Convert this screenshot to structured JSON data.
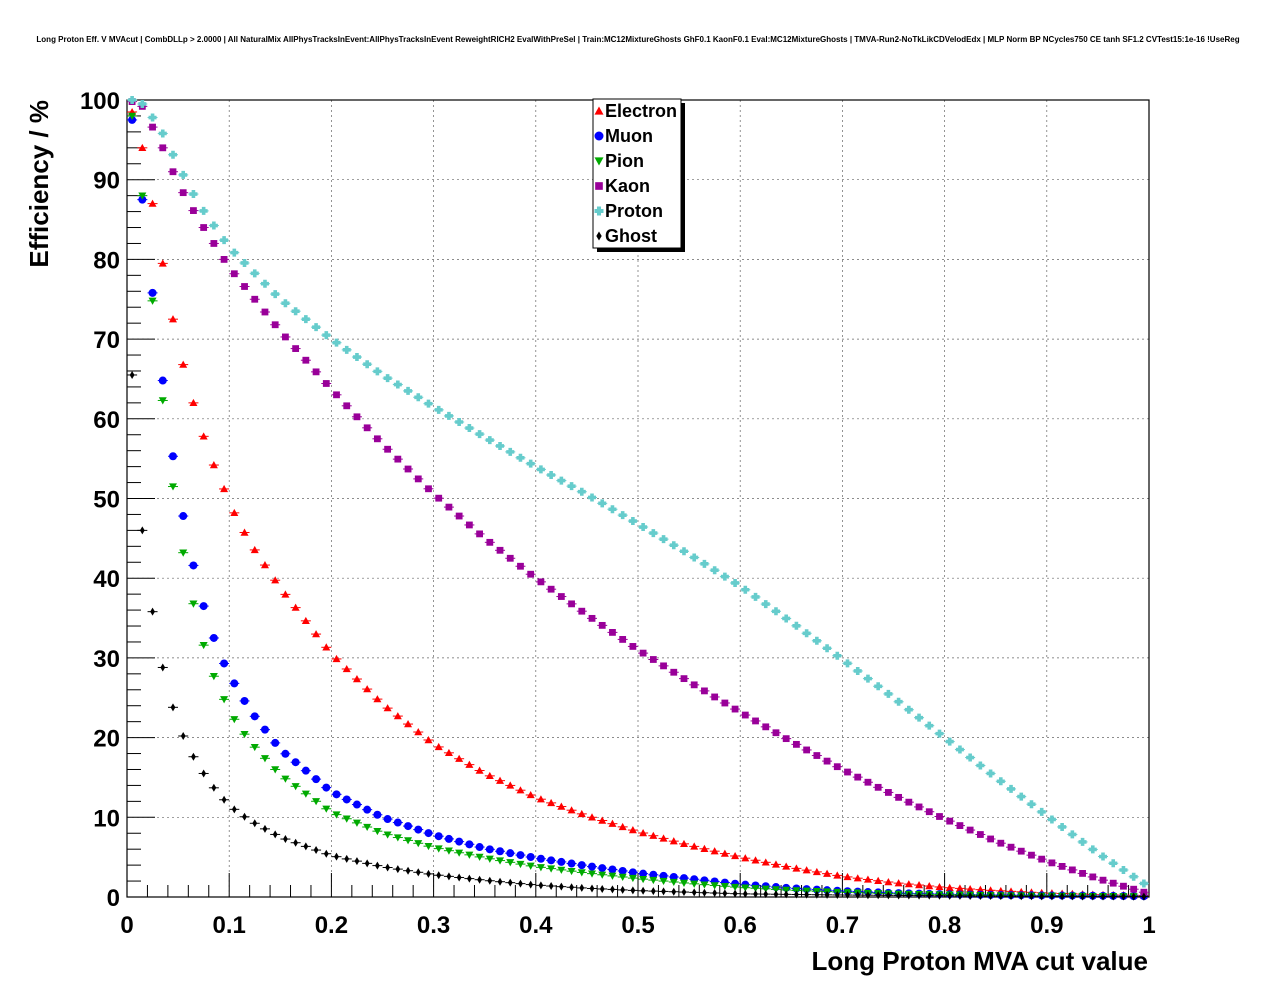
{
  "chart_data": {
    "type": "scatter",
    "title": "Long Proton Eff. V MVAcut | CombDLLp > 2.0000 | All NaturalMix AllPhysTracksInEvent:AllPhysTracksInEvent ReweightRICH2 EvalWithPreSel | Train:MC12MixtureGhosts GhF0.1 KaonF0.1 Eval:MC12MixtureGhosts | TMVA-Run2-NoTkLikCDVelodEdx | MLP Norm BP NCycles750 CE tanh SF1.2 CVTest15:1e-16 !UseReg",
    "xlabel": "Long Proton MVA cut value",
    "ylabel": "Efficiency / %",
    "xlim": [
      0,
      1
    ],
    "ylim": [
      0,
      100
    ],
    "x_ticks": [
      "0",
      "0.1",
      "0.2",
      "0.3",
      "0.4",
      "0.5",
      "0.6",
      "0.7",
      "0.8",
      "0.9",
      "1"
    ],
    "y_ticks": [
      "0",
      "10",
      "20",
      "30",
      "40",
      "50",
      "60",
      "70",
      "80",
      "90",
      "100"
    ],
    "grid": true,
    "legend_position": "top-center",
    "series": [
      {
        "name": "Electron",
        "color": "#ff0000",
        "marker": "triangle-up",
        "anchors": [
          [
            0.005,
            98.5
          ],
          [
            0.015,
            94
          ],
          [
            0.025,
            87
          ],
          [
            0.035,
            79.5
          ],
          [
            0.045,
            72.5
          ],
          [
            0.055,
            66.8
          ],
          [
            0.065,
            62
          ],
          [
            0.075,
            57.8
          ],
          [
            0.085,
            54.2
          ],
          [
            0.095,
            51.2
          ],
          [
            0.105,
            48.2
          ],
          [
            0.12,
            44.5
          ],
          [
            0.15,
            38.8
          ],
          [
            0.2,
            30.5
          ],
          [
            0.25,
            24.2
          ],
          [
            0.3,
            19.2
          ],
          [
            0.35,
            15.5
          ],
          [
            0.4,
            12.5
          ],
          [
            0.45,
            10.2
          ],
          [
            0.5,
            8.2
          ],
          [
            0.55,
            6.5
          ],
          [
            0.6,
            5
          ],
          [
            0.65,
            3.7
          ],
          [
            0.7,
            2.6
          ],
          [
            0.75,
            1.8
          ],
          [
            0.8,
            1.2
          ],
          [
            0.85,
            0.8
          ],
          [
            0.9,
            0.5
          ],
          [
            0.95,
            0.3
          ],
          [
            0.995,
            0.2
          ]
        ]
      },
      {
        "name": "Muon",
        "color": "#0000ff",
        "marker": "circle",
        "anchors": [
          [
            0.005,
            97.5
          ],
          [
            0.015,
            87.5
          ],
          [
            0.025,
            75.8
          ],
          [
            0.035,
            64.8
          ],
          [
            0.045,
            55.3
          ],
          [
            0.055,
            47.8
          ],
          [
            0.065,
            41.6
          ],
          [
            0.075,
            36.5
          ],
          [
            0.085,
            32.5
          ],
          [
            0.095,
            29.3
          ],
          [
            0.105,
            26.8
          ],
          [
            0.12,
            23.5
          ],
          [
            0.15,
            18.5
          ],
          [
            0.2,
            13.2
          ],
          [
            0.25,
            10
          ],
          [
            0.3,
            7.8
          ],
          [
            0.35,
            6.1
          ],
          [
            0.4,
            4.9
          ],
          [
            0.45,
            3.9
          ],
          [
            0.5,
            3
          ],
          [
            0.55,
            2.3
          ],
          [
            0.6,
            1.6
          ],
          [
            0.65,
            1.1
          ],
          [
            0.7,
            0.75
          ],
          [
            0.75,
            0.5
          ],
          [
            0.8,
            0.35
          ],
          [
            0.85,
            0.25
          ],
          [
            0.9,
            0.2
          ],
          [
            0.95,
            0.15
          ],
          [
            0.995,
            0.1
          ]
        ]
      },
      {
        "name": "Pion",
        "color": "#00aa00",
        "marker": "triangle-down",
        "anchors": [
          [
            0.005,
            98
          ],
          [
            0.015,
            88
          ],
          [
            0.025,
            74.8
          ],
          [
            0.035,
            62.3
          ],
          [
            0.045,
            51.5
          ],
          [
            0.055,
            43.2
          ],
          [
            0.065,
            36.8
          ],
          [
            0.075,
            31.6
          ],
          [
            0.085,
            27.7
          ],
          [
            0.095,
            24.8
          ],
          [
            0.105,
            22.3
          ],
          [
            0.12,
            19.5
          ],
          [
            0.15,
            15.3
          ],
          [
            0.2,
            10.6
          ],
          [
            0.25,
            8
          ],
          [
            0.3,
            6.2
          ],
          [
            0.35,
            4.9
          ],
          [
            0.4,
            3.8
          ],
          [
            0.45,
            3
          ],
          [
            0.5,
            2.3
          ],
          [
            0.55,
            1.7
          ],
          [
            0.6,
            1.2
          ],
          [
            0.65,
            0.85
          ],
          [
            0.7,
            0.6
          ],
          [
            0.75,
            0.4
          ],
          [
            0.8,
            0.3
          ],
          [
            0.85,
            0.2
          ],
          [
            0.9,
            0.15
          ],
          [
            0.95,
            0.1
          ],
          [
            0.995,
            0.08
          ]
        ]
      },
      {
        "name": "Kaon",
        "color": "#990099",
        "marker": "square",
        "anchors": [
          [
            0.005,
            99.8
          ],
          [
            0.015,
            99.2
          ],
          [
            0.035,
            94
          ],
          [
            0.05,
            89.5
          ],
          [
            0.07,
            85
          ],
          [
            0.1,
            79
          ],
          [
            0.15,
            71
          ],
          [
            0.2,
            63.7
          ],
          [
            0.25,
            56.8
          ],
          [
            0.3,
            50.6
          ],
          [
            0.35,
            45
          ],
          [
            0.4,
            40
          ],
          [
            0.45,
            35.4
          ],
          [
            0.5,
            31
          ],
          [
            0.55,
            27
          ],
          [
            0.6,
            23.2
          ],
          [
            0.65,
            19.5
          ],
          [
            0.7,
            16
          ],
          [
            0.75,
            12.8
          ],
          [
            0.8,
            9.8
          ],
          [
            0.85,
            7
          ],
          [
            0.9,
            4.5
          ],
          [
            0.95,
            2.3
          ],
          [
            0.995,
            0.6
          ]
        ]
      },
      {
        "name": "Proton",
        "color": "#66cccc",
        "marker": "cross",
        "anchors": [
          [
            0.005,
            100
          ],
          [
            0.015,
            99.5
          ],
          [
            0.025,
            97.8
          ],
          [
            0.035,
            95.8
          ],
          [
            0.05,
            91.8
          ],
          [
            0.07,
            87
          ],
          [
            0.1,
            81.5
          ],
          [
            0.15,
            75
          ],
          [
            0.2,
            70
          ],
          [
            0.25,
            65.5
          ],
          [
            0.3,
            61.5
          ],
          [
            0.35,
            57.7
          ],
          [
            0.4,
            54
          ],
          [
            0.45,
            50.5
          ],
          [
            0.5,
            46.8
          ],
          [
            0.55,
            43
          ],
          [
            0.6,
            39
          ],
          [
            0.65,
            34.5
          ],
          [
            0.7,
            29.8
          ],
          [
            0.75,
            25
          ],
          [
            0.8,
            20
          ],
          [
            0.85,
            15
          ],
          [
            0.9,
            10.2
          ],
          [
            0.95,
            5.5
          ],
          [
            0.995,
            1.7
          ]
        ]
      },
      {
        "name": "Ghost",
        "color": "#000000",
        "marker": "diamond",
        "anchors": [
          [
            0.005,
            65.5
          ],
          [
            0.015,
            46
          ],
          [
            0.025,
            35.8
          ],
          [
            0.035,
            28.8
          ],
          [
            0.045,
            23.8
          ],
          [
            0.055,
            20.2
          ],
          [
            0.065,
            17.6
          ],
          [
            0.075,
            15.5
          ],
          [
            0.085,
            13.7
          ],
          [
            0.095,
            12.2
          ],
          [
            0.105,
            11
          ],
          [
            0.12,
            9.6
          ],
          [
            0.15,
            7.5
          ],
          [
            0.2,
            5.2
          ],
          [
            0.25,
            3.8
          ],
          [
            0.3,
            2.8
          ],
          [
            0.35,
            2.1
          ],
          [
            0.4,
            1.5
          ],
          [
            0.45,
            1.1
          ],
          [
            0.5,
            0.8
          ],
          [
            0.55,
            0.6
          ],
          [
            0.6,
            0.4
          ],
          [
            0.7,
            0.25
          ],
          [
            0.8,
            0.15
          ],
          [
            0.9,
            0.08
          ],
          [
            0.995,
            0.05
          ]
        ]
      }
    ]
  }
}
